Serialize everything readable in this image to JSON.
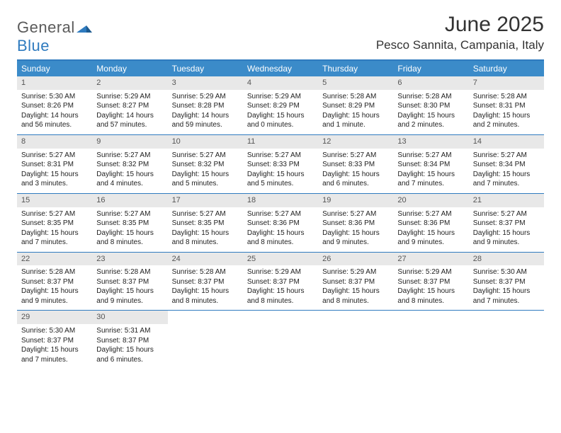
{
  "logo": {
    "word1": "General",
    "word2": "Blue"
  },
  "title": "June 2025",
  "location": "Pesco Sannita, Campania, Italy",
  "colors": {
    "accent": "#3b8bc9",
    "border": "#2f7bbf",
    "dayHeaderBg": "#e8e8e8",
    "text": "#333333"
  },
  "weekdays": [
    "Sunday",
    "Monday",
    "Tuesday",
    "Wednesday",
    "Thursday",
    "Friday",
    "Saturday"
  ],
  "weeks": [
    [
      {
        "n": "1",
        "sr": "Sunrise: 5:30 AM",
        "ss": "Sunset: 8:26 PM",
        "dl": "Daylight: 14 hours and 56 minutes."
      },
      {
        "n": "2",
        "sr": "Sunrise: 5:29 AM",
        "ss": "Sunset: 8:27 PM",
        "dl": "Daylight: 14 hours and 57 minutes."
      },
      {
        "n": "3",
        "sr": "Sunrise: 5:29 AM",
        "ss": "Sunset: 8:28 PM",
        "dl": "Daylight: 14 hours and 59 minutes."
      },
      {
        "n": "4",
        "sr": "Sunrise: 5:29 AM",
        "ss": "Sunset: 8:29 PM",
        "dl": "Daylight: 15 hours and 0 minutes."
      },
      {
        "n": "5",
        "sr": "Sunrise: 5:28 AM",
        "ss": "Sunset: 8:29 PM",
        "dl": "Daylight: 15 hours and 1 minute."
      },
      {
        "n": "6",
        "sr": "Sunrise: 5:28 AM",
        "ss": "Sunset: 8:30 PM",
        "dl": "Daylight: 15 hours and 2 minutes."
      },
      {
        "n": "7",
        "sr": "Sunrise: 5:28 AM",
        "ss": "Sunset: 8:31 PM",
        "dl": "Daylight: 15 hours and 2 minutes."
      }
    ],
    [
      {
        "n": "8",
        "sr": "Sunrise: 5:27 AM",
        "ss": "Sunset: 8:31 PM",
        "dl": "Daylight: 15 hours and 3 minutes."
      },
      {
        "n": "9",
        "sr": "Sunrise: 5:27 AM",
        "ss": "Sunset: 8:32 PM",
        "dl": "Daylight: 15 hours and 4 minutes."
      },
      {
        "n": "10",
        "sr": "Sunrise: 5:27 AM",
        "ss": "Sunset: 8:32 PM",
        "dl": "Daylight: 15 hours and 5 minutes."
      },
      {
        "n": "11",
        "sr": "Sunrise: 5:27 AM",
        "ss": "Sunset: 8:33 PM",
        "dl": "Daylight: 15 hours and 5 minutes."
      },
      {
        "n": "12",
        "sr": "Sunrise: 5:27 AM",
        "ss": "Sunset: 8:33 PM",
        "dl": "Daylight: 15 hours and 6 minutes."
      },
      {
        "n": "13",
        "sr": "Sunrise: 5:27 AM",
        "ss": "Sunset: 8:34 PM",
        "dl": "Daylight: 15 hours and 7 minutes."
      },
      {
        "n": "14",
        "sr": "Sunrise: 5:27 AM",
        "ss": "Sunset: 8:34 PM",
        "dl": "Daylight: 15 hours and 7 minutes."
      }
    ],
    [
      {
        "n": "15",
        "sr": "Sunrise: 5:27 AM",
        "ss": "Sunset: 8:35 PM",
        "dl": "Daylight: 15 hours and 7 minutes."
      },
      {
        "n": "16",
        "sr": "Sunrise: 5:27 AM",
        "ss": "Sunset: 8:35 PM",
        "dl": "Daylight: 15 hours and 8 minutes."
      },
      {
        "n": "17",
        "sr": "Sunrise: 5:27 AM",
        "ss": "Sunset: 8:35 PM",
        "dl": "Daylight: 15 hours and 8 minutes."
      },
      {
        "n": "18",
        "sr": "Sunrise: 5:27 AM",
        "ss": "Sunset: 8:36 PM",
        "dl": "Daylight: 15 hours and 8 minutes."
      },
      {
        "n": "19",
        "sr": "Sunrise: 5:27 AM",
        "ss": "Sunset: 8:36 PM",
        "dl": "Daylight: 15 hours and 9 minutes."
      },
      {
        "n": "20",
        "sr": "Sunrise: 5:27 AM",
        "ss": "Sunset: 8:36 PM",
        "dl": "Daylight: 15 hours and 9 minutes."
      },
      {
        "n": "21",
        "sr": "Sunrise: 5:27 AM",
        "ss": "Sunset: 8:37 PM",
        "dl": "Daylight: 15 hours and 9 minutes."
      }
    ],
    [
      {
        "n": "22",
        "sr": "Sunrise: 5:28 AM",
        "ss": "Sunset: 8:37 PM",
        "dl": "Daylight: 15 hours and 9 minutes."
      },
      {
        "n": "23",
        "sr": "Sunrise: 5:28 AM",
        "ss": "Sunset: 8:37 PM",
        "dl": "Daylight: 15 hours and 9 minutes."
      },
      {
        "n": "24",
        "sr": "Sunrise: 5:28 AM",
        "ss": "Sunset: 8:37 PM",
        "dl": "Daylight: 15 hours and 8 minutes."
      },
      {
        "n": "25",
        "sr": "Sunrise: 5:29 AM",
        "ss": "Sunset: 8:37 PM",
        "dl": "Daylight: 15 hours and 8 minutes."
      },
      {
        "n": "26",
        "sr": "Sunrise: 5:29 AM",
        "ss": "Sunset: 8:37 PM",
        "dl": "Daylight: 15 hours and 8 minutes."
      },
      {
        "n": "27",
        "sr": "Sunrise: 5:29 AM",
        "ss": "Sunset: 8:37 PM",
        "dl": "Daylight: 15 hours and 8 minutes."
      },
      {
        "n": "28",
        "sr": "Sunrise: 5:30 AM",
        "ss": "Sunset: 8:37 PM",
        "dl": "Daylight: 15 hours and 7 minutes."
      }
    ],
    [
      {
        "n": "29",
        "sr": "Sunrise: 5:30 AM",
        "ss": "Sunset: 8:37 PM",
        "dl": "Daylight: 15 hours and 7 minutes."
      },
      {
        "n": "30",
        "sr": "Sunrise: 5:31 AM",
        "ss": "Sunset: 8:37 PM",
        "dl": "Daylight: 15 hours and 6 minutes."
      },
      null,
      null,
      null,
      null,
      null
    ]
  ]
}
